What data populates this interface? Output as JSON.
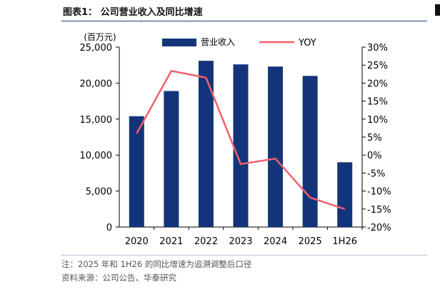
{
  "figure": {
    "title": "图表1： 公司营业收入及同比增速",
    "note": "注：2025 年和 1H26 的同比增速为追溯调整后口径",
    "source": "资料来源：公司公告、华泰研究"
  },
  "colors": {
    "bar": "#12357a",
    "line": "#f25f6b",
    "title_rule": "#1f3a7a"
  },
  "chart_data": {
    "type": "bar",
    "categories": [
      "2020",
      "2021",
      "2022",
      "2023",
      "2024",
      "2025",
      "1H26"
    ],
    "series": [
      {
        "name": "营业收入",
        "type": "bar",
        "axis": "left",
        "values": [
          15400,
          18900,
          23100,
          22600,
          22300,
          21000,
          9000
        ]
      },
      {
        "name": "YOY",
        "type": "line",
        "axis": "right",
        "values": [
          6.0,
          23.4,
          21.5,
          -2.5,
          -1.0,
          -11.8,
          -15.0
        ]
      }
    ],
    "y_left": {
      "unit_label": "(百万元)",
      "lim": [
        0,
        25000
      ],
      "ticks": [
        "0",
        "5,000",
        "10,000",
        "15,000",
        "20,000",
        "25,000"
      ]
    },
    "y_right": {
      "lim": [
        -20,
        30
      ],
      "ticks": [
        "-20%",
        "-15%",
        "-10%",
        "-5%",
        "0%",
        "5%",
        "10%",
        "15%",
        "20%",
        "25%",
        "30%"
      ]
    },
    "grid": false,
    "legend": "top-center"
  }
}
